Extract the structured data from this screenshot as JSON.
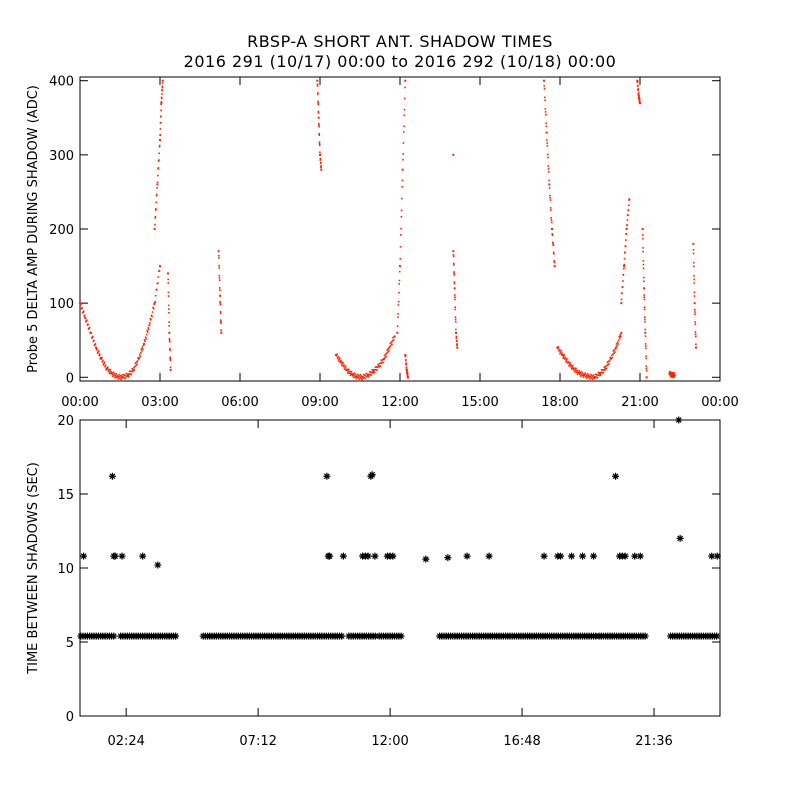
{
  "chart_data": [
    {
      "type": "scatter",
      "title": "RBSP-A SHORT ANT. SHADOW TIMES",
      "subtitle": "2016 291 (10/17) 00:00 to 2016 292 (10/18) 00:00",
      "ylabel": "Probe 5 DELTA AMP DURING SHADOW (ADC)",
      "xlabel": "",
      "xlim": [
        0,
        24
      ],
      "ylim": [
        -5,
        405
      ],
      "x_ticks": [
        0,
        3,
        6,
        9,
        12,
        15,
        18,
        21,
        24
      ],
      "x_tick_labels": [
        "00:00",
        "03:00",
        "06:00",
        "09:00",
        "12:00",
        "15:00",
        "18:00",
        "21:00",
        "00:00"
      ],
      "y_ticks": [
        0,
        100,
        200,
        300,
        400
      ],
      "y_tick_labels": [
        "0",
        "100",
        "200",
        "300",
        "400"
      ],
      "marker_color": "#ff2200",
      "series_segments": [
        {
          "x": [
            0.0,
            0.2,
            0.4,
            0.6,
            0.8,
            1.0,
            1.2,
            1.4,
            1.6
          ],
          "y": [
            100,
            80,
            60,
            40,
            25,
            12,
            5,
            1,
            0
          ]
        },
        {
          "x": [
            1.6,
            1.8,
            2.0,
            2.2,
            2.4,
            2.6,
            2.8,
            3.0
          ],
          "y": [
            0,
            3,
            10,
            25,
            45,
            70,
            100,
            150
          ]
        },
        {
          "x": [
            2.8,
            2.9,
            3.0,
            3.05,
            3.1
          ],
          "y": [
            200,
            260,
            320,
            370,
            400
          ]
        },
        {
          "x": [
            3.3,
            3.35,
            3.4
          ],
          "y": [
            140,
            60,
            10
          ]
        },
        {
          "x": [
            5.2,
            5.25,
            5.3
          ],
          "y": [
            170,
            110,
            60
          ]
        },
        {
          "x": [
            8.9,
            8.95,
            9.0,
            9.05
          ],
          "y": [
            400,
            350,
            300,
            280
          ]
        },
        {
          "x": [
            9.6,
            9.8,
            10.0,
            10.2,
            10.4,
            10.6
          ],
          "y": [
            30,
            20,
            10,
            4,
            1,
            0
          ]
        },
        {
          "x": [
            10.6,
            10.8,
            11.0,
            11.2,
            11.4,
            11.6,
            11.8
          ],
          "y": [
            0,
            3,
            8,
            15,
            25,
            40,
            55
          ]
        },
        {
          "x": [
            11.9,
            12.0,
            12.1,
            12.2
          ],
          "y": [
            60,
            150,
            280,
            400
          ]
        },
        {
          "x": [
            12.2,
            12.25,
            12.3
          ],
          "y": [
            30,
            10,
            0
          ]
        },
        {
          "x": [
            14.0,
            14.05,
            14.1,
            14.15
          ],
          "y": [
            170,
            120,
            60,
            40
          ]
        },
        {
          "x": [
            14.0
          ],
          "y": [
            300
          ]
        },
        {
          "x": [
            17.4,
            17.5,
            17.6,
            17.7,
            17.8
          ],
          "y": [
            400,
            330,
            260,
            200,
            150
          ]
        },
        {
          "x": [
            17.9,
            18.1,
            18.3,
            18.5,
            18.7,
            18.9,
            19.1,
            19.3
          ],
          "y": [
            40,
            30,
            20,
            12,
            6,
            3,
            1,
            0
          ]
        },
        {
          "x": [
            19.3,
            19.5,
            19.7,
            19.9,
            20.1,
            20.3
          ],
          "y": [
            0,
            5,
            12,
            25,
            40,
            60
          ]
        },
        {
          "x": [
            20.3,
            20.4,
            20.5,
            20.6
          ],
          "y": [
            100,
            150,
            200,
            240
          ]
        },
        {
          "x": [
            20.9,
            20.95,
            21.0
          ],
          "y": [
            400,
            380,
            370
          ]
        },
        {
          "x": [
            21.1,
            21.15,
            21.2,
            21.25
          ],
          "y": [
            200,
            120,
            60,
            0
          ]
        },
        {
          "x": [
            22.1,
            22.2,
            22.3
          ],
          "y": [
            5,
            3,
            3
          ]
        },
        {
          "x": [
            23.0,
            23.05,
            23.1
          ],
          "y": [
            180,
            100,
            40
          ]
        }
      ]
    },
    {
      "type": "scatter",
      "ylabel": "TIME BETWEEN SHADOWS (SEC)",
      "xlabel": "",
      "xlim": [
        0.72,
        24.0
      ],
      "ylim": [
        0,
        20
      ],
      "x_ticks": [
        2.4,
        7.2,
        12.0,
        16.8,
        21.6
      ],
      "x_tick_labels": [
        "02:24",
        "07:12",
        "12:00",
        "16:48",
        "21:36"
      ],
      "y_ticks": [
        0,
        5,
        10,
        15,
        20
      ],
      "y_tick_labels": [
        "0",
        "5",
        "10",
        "15",
        "20"
      ],
      "marker": "*",
      "baseline_value": 5.4,
      "baseline_ranges": [
        [
          0.75,
          2.0
        ],
        [
          2.2,
          4.2
        ],
        [
          5.2,
          10.3
        ],
        [
          10.5,
          11.5
        ],
        [
          11.6,
          12.4
        ],
        [
          13.8,
          19.5
        ],
        [
          19.6,
          21.3
        ],
        [
          22.2,
          23.95
        ]
      ],
      "points": {
        "x": [
          0.85,
          1.9,
          1.95,
          2.0,
          2.25,
          3.0,
          3.55,
          9.7,
          9.75,
          9.8,
          10.3,
          11.0,
          11.1,
          11.2,
          11.3,
          11.35,
          11.45,
          11.9,
          12.0,
          12.1,
          13.3,
          14.1,
          14.8,
          15.6,
          17.6,
          18.1,
          18.2,
          18.6,
          19.0,
          19.4,
          20.2,
          20.35,
          20.45,
          20.55,
          20.9,
          21.1,
          22.5,
          22.55,
          23.7,
          23.9
        ],
        "y": [
          10.8,
          16.2,
          10.8,
          10.8,
          10.8,
          10.8,
          10.2,
          16.2,
          10.8,
          10.8,
          10.8,
          10.8,
          10.8,
          10.8,
          16.2,
          16.3,
          10.8,
          10.8,
          10.8,
          10.8,
          10.6,
          10.7,
          10.8,
          10.8,
          10.8,
          10.8,
          10.8,
          10.8,
          10.8,
          10.8,
          16.2,
          10.8,
          10.8,
          10.8,
          10.8,
          10.8,
          20.0,
          12.0,
          10.8,
          10.8
        ]
      }
    }
  ]
}
